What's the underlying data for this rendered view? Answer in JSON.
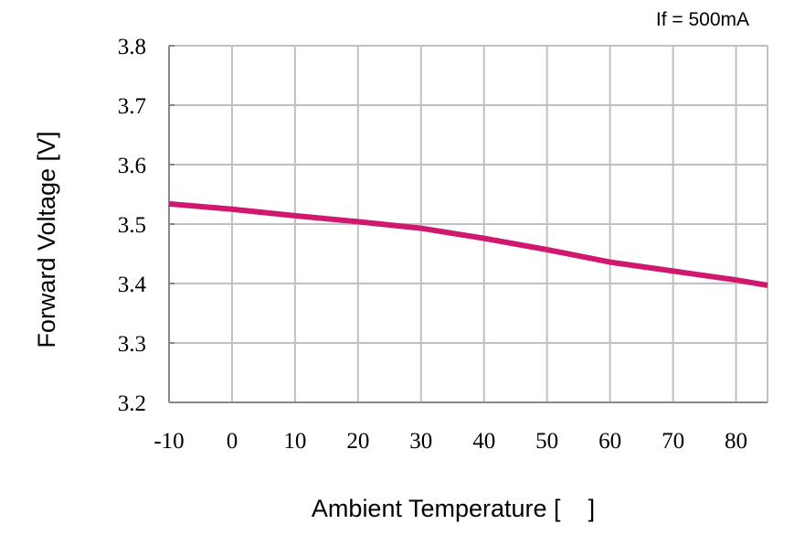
{
  "chart_data": {
    "type": "line",
    "title": "",
    "annotation": "If = 500mA",
    "xlabel": "Ambient Temperature [    ]",
    "ylabel": "Forward Voltage [V]",
    "xlim": [
      -10,
      85
    ],
    "ylim": [
      3.2,
      3.8
    ],
    "xticks": [
      -10,
      0,
      10,
      20,
      30,
      40,
      50,
      60,
      70,
      80
    ],
    "xtick_labels": [
      "-10",
      "0",
      "10",
      "20",
      "30",
      "40",
      "50",
      "60",
      "70",
      "80"
    ],
    "yticks": [
      3.2,
      3.3,
      3.4,
      3.5,
      3.6,
      3.7,
      3.8
    ],
    "ytick_labels": [
      "3.2",
      "3.3",
      "3.4",
      "3.5",
      "3.6",
      "3.7",
      "3.8"
    ],
    "grid": true,
    "series": [
      {
        "name": "Forward Voltage",
        "color": "#d0186e",
        "x": [
          -10,
          0,
          10,
          20,
          30,
          40,
          50,
          60,
          70,
          80,
          85
        ],
        "y": [
          3.534,
          3.525,
          3.514,
          3.504,
          3.493,
          3.476,
          3.457,
          3.436,
          3.421,
          3.406,
          3.397
        ]
      }
    ]
  }
}
